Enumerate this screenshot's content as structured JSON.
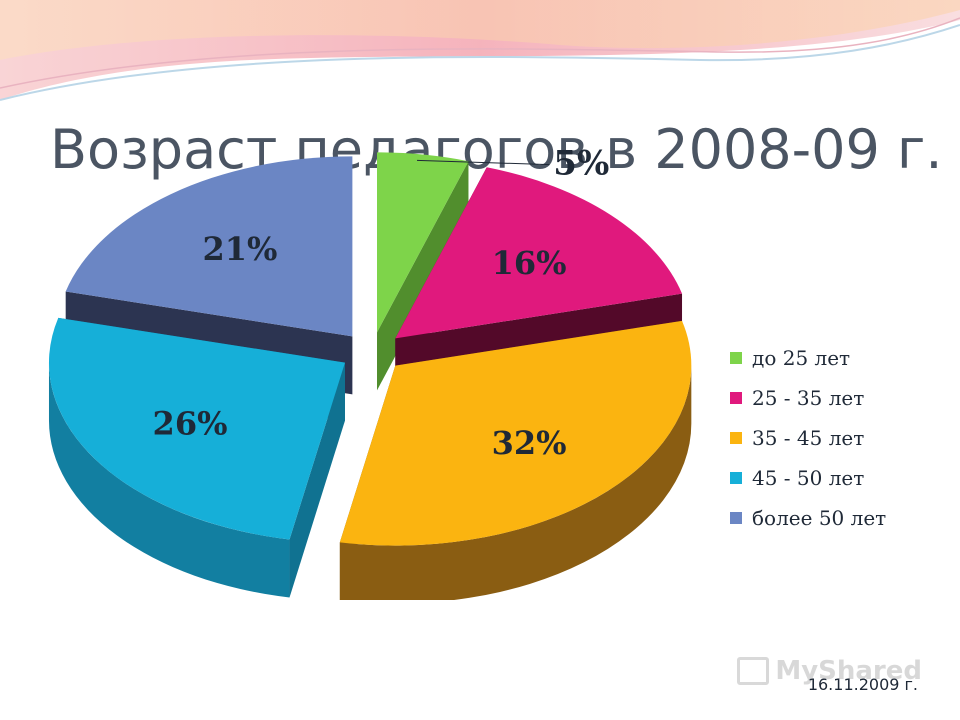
{
  "title": "Возраст педагогов в 2008-09 г.",
  "footer_date": "16.11.2009 г.",
  "watermark": "MyShared",
  "chart_data": {
    "type": "pie",
    "style": "3d-exploded",
    "legend_position": "right",
    "slices": [
      {
        "label": "до 25 лет",
        "value": 5,
        "display": "5%",
        "color": "#7ed44a",
        "side_color": "#5a9e32"
      },
      {
        "label": "25 - 35 лет",
        "value": 16,
        "display": "16%",
        "color": "#e0197d",
        "side_color": "#5c0a2e"
      },
      {
        "label": "35 - 45 лет",
        "value": 32,
        "display": "32%",
        "color": "#fbb410",
        "side_color": "#8a5d12"
      },
      {
        "label": "45 - 50 лет",
        "value": 26,
        "display": "26%",
        "color": "#16afd8",
        "side_color": "#127fa1"
      },
      {
        "label": "более 50 лет",
        "value": 21,
        "display": "21%",
        "color": "#6b86c4",
        "side_color": "#313a5a"
      }
    ]
  }
}
